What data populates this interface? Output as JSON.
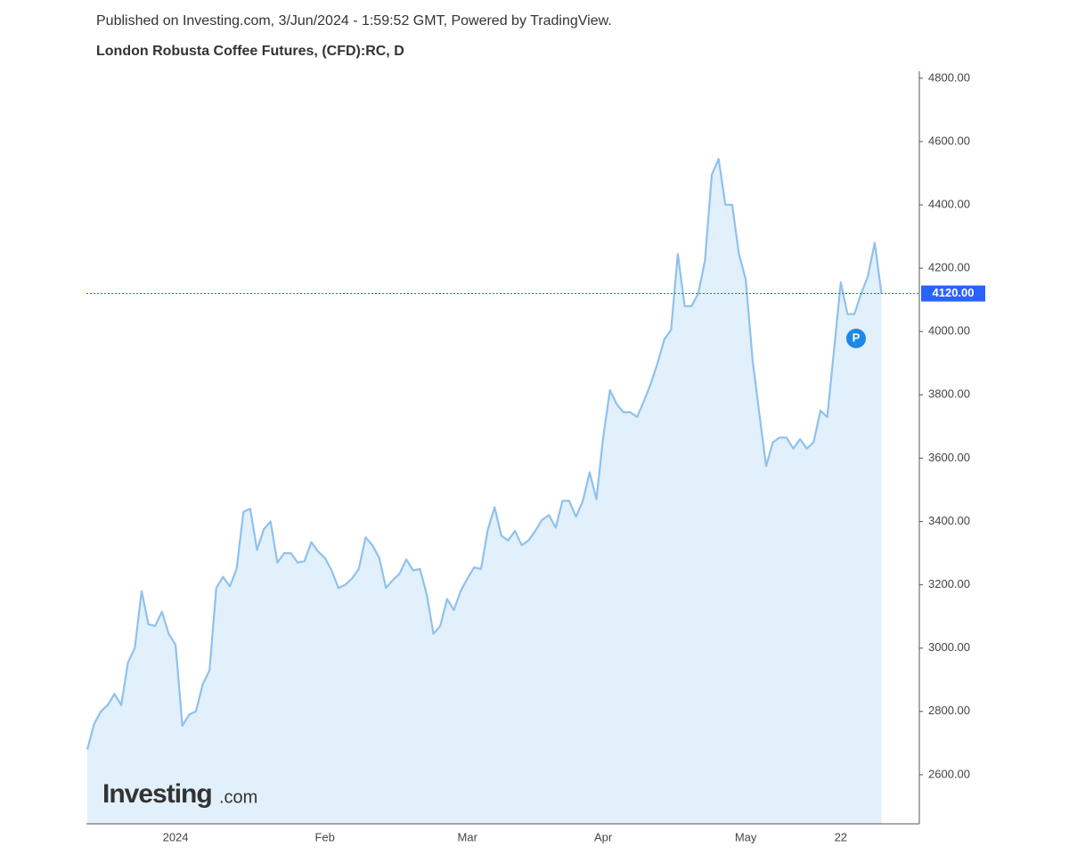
{
  "header": "Published on Investing.com, 3/Jun/2024 - 1:59:52 GMT, Powered by TradingView.",
  "chart_data": {
    "type": "line",
    "title": "London Robusta Coffee Futures, (CFD):RC, D",
    "categories": [
      null,
      null,
      null,
      null,
      null,
      null,
      null,
      null,
      null,
      null,
      null,
      null,
      null,
      "2024",
      null,
      null,
      null,
      null,
      null,
      null,
      null,
      null,
      null,
      null,
      null,
      null,
      null,
      null,
      null,
      null,
      null,
      null,
      null,
      null,
      null,
      "Feb",
      null,
      null,
      null,
      null,
      null,
      null,
      null,
      null,
      null,
      null,
      null,
      null,
      null,
      null,
      null,
      null,
      null,
      null,
      null,
      null,
      "Mar",
      null,
      null,
      null,
      null,
      null,
      null,
      null,
      null,
      null,
      null,
      null,
      null,
      null,
      null,
      null,
      null,
      null,
      null,
      null,
      "Apr",
      null,
      null,
      null,
      null,
      null,
      null,
      null,
      null,
      null,
      null,
      null,
      null,
      null,
      null,
      null,
      null,
      null,
      null,
      null,
      null,
      "May",
      null,
      null,
      null,
      null,
      null,
      null,
      null,
      null,
      null,
      null,
      null,
      null,
      null,
      "22",
      null,
      null,
      null,
      null,
      null,
      null
    ],
    "series": [
      {
        "color": "#8fc1ee",
        "fill": "#e2f0fb",
        "values": [
          2680,
          2760,
          2800,
          2820,
          2855,
          2820,
          2955,
          3000,
          3180,
          3075,
          3070,
          3115,
          3045,
          3010,
          2755,
          2790,
          2800,
          2885,
          2930,
          3190,
          3225,
          3195,
          3250,
          3430,
          3440,
          3310,
          3375,
          3400,
          3270,
          3300,
          3300,
          3270,
          3275,
          3335,
          3305,
          3285,
          3245,
          3190,
          3200,
          3220,
          3250,
          3350,
          3325,
          3285,
          3190,
          3215,
          3235,
          3280,
          3245,
          3250,
          3170,
          3045,
          3070,
          3155,
          3120,
          3180,
          3220,
          3255,
          3250,
          3375,
          3445,
          3355,
          3340,
          3370,
          3325,
          3340,
          3370,
          3405,
          3420,
          3380,
          3465,
          3465,
          3415,
          3465,
          3555,
          3470,
          3665,
          3815,
          3770,
          3745,
          3745,
          3730,
          3780,
          3835,
          3900,
          3975,
          4005,
          4245,
          4080,
          4080,
          4120,
          4225,
          4495,
          4545,
          4400,
          4400,
          4245,
          4165,
          3910,
          3740,
          3575,
          3650,
          3665,
          3665,
          3630,
          3660,
          3630,
          3650,
          3750,
          3730,
          3940,
          4155,
          4055,
          4055,
          4120,
          4175,
          4280,
          4120
        ]
      }
    ],
    "ylim": [
      2445,
      4822
    ],
    "yticks": [
      {
        "value": 2600,
        "label": "2600.00"
      },
      {
        "value": 2800,
        "label": "2800.00"
      },
      {
        "value": 3000,
        "label": "3000.00"
      },
      {
        "value": 3200,
        "label": "3200.00"
      },
      {
        "value": 3400,
        "label": "3400.00"
      },
      {
        "value": 3600,
        "label": "3600.00"
      },
      {
        "value": 3800,
        "label": "3800.00"
      },
      {
        "value": 4000,
        "label": "4000.00"
      },
      {
        "value": 4200,
        "label": "4200.00"
      },
      {
        "value": 4400,
        "label": "4400.00"
      },
      {
        "value": 4600,
        "label": "4600.00"
      },
      {
        "value": 4800,
        "label": "4800.00"
      }
    ],
    "price_line": {
      "value": 4120,
      "label": "4120.00",
      "color": "#2962ff"
    },
    "annotation": "P",
    "watermark": {
      "brand": "Investing",
      "suffix": ".com"
    }
  }
}
